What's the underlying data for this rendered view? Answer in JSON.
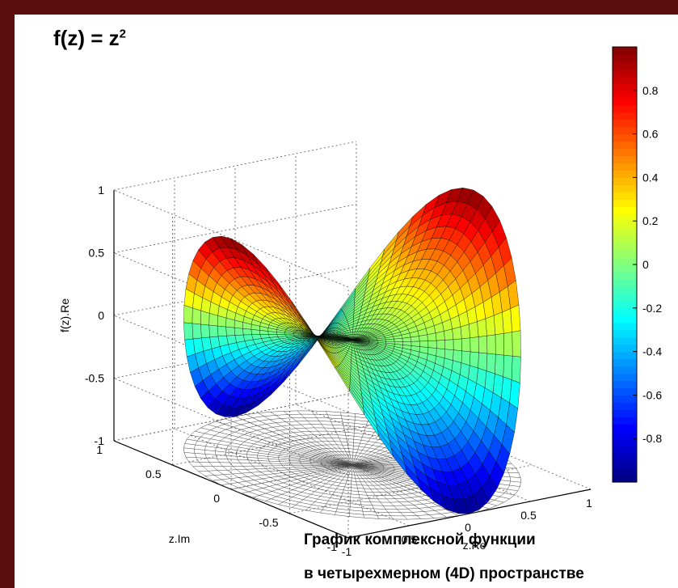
{
  "title": {
    "base": "f(z) = z",
    "sup": "2"
  },
  "caption": {
    "line1": "График  комплексной функции",
    "line2": "в четырехмерном (4D) пространстве"
  },
  "chart_data": {
    "type": "surface",
    "function": "f(z) = z^2",
    "axes": {
      "x": {
        "label": "z.Re",
        "ticks": [
          "-1",
          "-0.5",
          "0",
          "0.5",
          "1"
        ],
        "range": [
          -1,
          1
        ]
      },
      "y": {
        "label": "z.Im",
        "ticks": [
          "-1",
          "-0.5",
          "0",
          "0.5",
          "1"
        ],
        "range": [
          -1,
          1
        ]
      },
      "z": {
        "label": "f(z).Re",
        "ticks": [
          "-1",
          "-0.5",
          "0",
          "0.5",
          "1"
        ],
        "range": [
          -1,
          1
        ]
      }
    },
    "colorbar": {
      "ticks": [
        "-0.8",
        "-0.6",
        "-0.4",
        "-0.2",
        "0",
        "0.2",
        "0.4",
        "0.6",
        "0.8"
      ],
      "range": [
        -1,
        1
      ]
    },
    "colors": {
      "background": "#5a0f0c",
      "mesh": "#000000"
    }
  }
}
